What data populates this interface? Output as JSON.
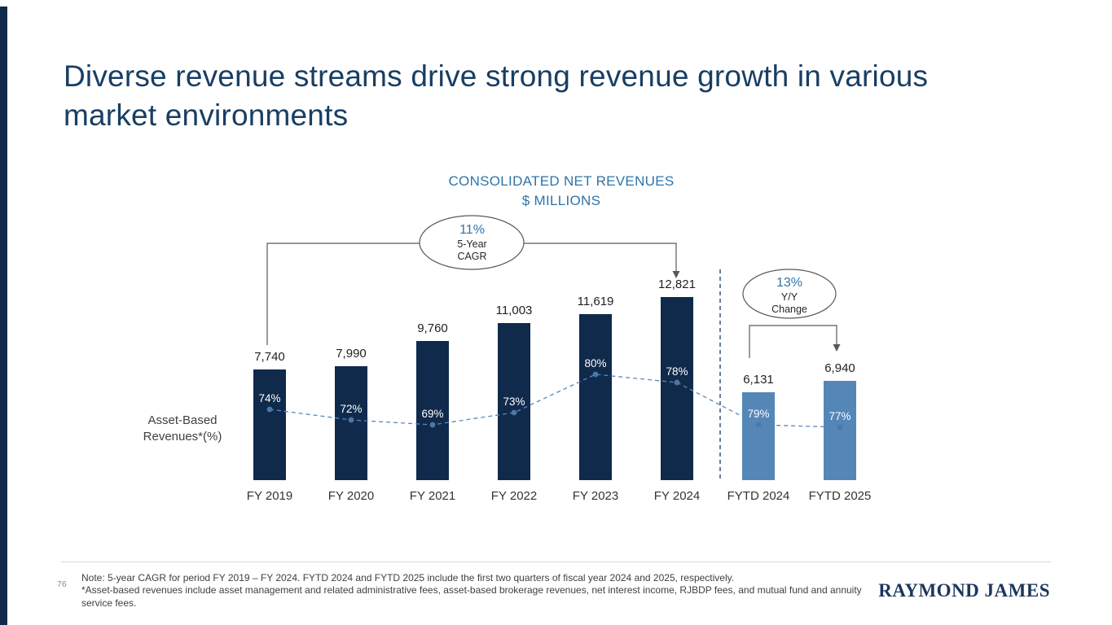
{
  "slide": {
    "title": "Diverse revenue streams drive strong revenue growth in various market environments",
    "page_number": "76",
    "logo": "RAYMOND JAMES",
    "footnote_line1": "Note: 5-year CAGR for period FY 2019 – FY 2024. FYTD 2024 and FYTD 2025 include the first two quarters of fiscal year 2024 and 2025, respectively.",
    "footnote_line2": "*Asset-based revenues include asset management and related administrative fees, asset-based brokerage revenues, net interest income, RJBDP fees, and mutual fund and annuity service fees."
  },
  "chart_data": {
    "type": "bar",
    "title": "CONSOLIDATED NET REVENUES",
    "subtitle": "$ MILLIONS",
    "categories": [
      "FY 2019",
      "FY 2020",
      "FY 2021",
      "FY 2022",
      "FY 2023",
      "FY 2024",
      "FYTD 2024",
      "FYTD 2025"
    ],
    "series": [
      {
        "name": "Consolidated net revenues ($ millions)",
        "values": [
          7740,
          7990,
          9760,
          11003,
          11619,
          12821,
          6131,
          6940
        ]
      },
      {
        "name": "Asset-Based Revenues* (%)",
        "values": [
          74,
          72,
          69,
          73,
          80,
          78,
          79,
          77
        ]
      }
    ],
    "value_labels": [
      "7,740",
      "7,990",
      "9,760",
      "11,003",
      "11,619",
      "12,821",
      "6,131",
      "6,940"
    ],
    "pct_labels": [
      "74%",
      "72%",
      "69%",
      "73%",
      "80%",
      "78%",
      "79%",
      "77%"
    ],
    "fytd_start_index": 6,
    "side_label": "Asset-Based Revenues*(%)",
    "annotations": [
      {
        "value": "11%",
        "label_line1": "5-Year",
        "label_line2": "CAGR"
      },
      {
        "value": "13%",
        "label_line1": "Y/Y",
        "label_line2": "Change"
      }
    ],
    "colors": {
      "fiscal_bar": "#102a4c",
      "fytd_bar": "#5586b8",
      "trend": "#5b87b8",
      "trend_dot": "#4a78a8",
      "accent_blue": "#2e74a8",
      "title_navy": "#183e63"
    },
    "grid": false,
    "legend_position": "none",
    "ylim": [
      0,
      13500
    ]
  }
}
